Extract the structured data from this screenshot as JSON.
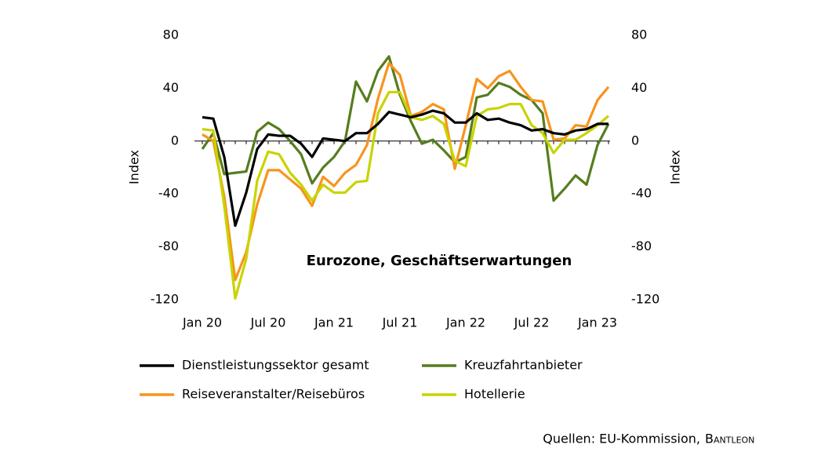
{
  "chart_data": {
    "type": "line",
    "annotation": "Eurozone, Geschäftserwartungen",
    "ylabel": "Index",
    "y2label": "Index",
    "source": "Quellen: EU-Kommission,",
    "source_brand": "Bantleon",
    "categories": [
      "Jan 20",
      null,
      null,
      null,
      null,
      null,
      "Jul 20",
      null,
      null,
      null,
      null,
      null,
      "Jan 21",
      null,
      null,
      null,
      null,
      null,
      "Jul 21",
      null,
      null,
      null,
      null,
      null,
      "Jan 22",
      null,
      null,
      null,
      null,
      null,
      "Jul 22",
      null,
      null,
      null,
      null,
      null,
      "Jan 23",
      null
    ],
    "ylim": [
      -120,
      80
    ],
    "yticks": [
      80,
      40,
      0,
      -40,
      -80,
      -120
    ],
    "y2lim": [
      -120,
      80
    ],
    "y2ticks": [
      80,
      40,
      0,
      -40,
      -80,
      -120
    ],
    "series": [
      {
        "name": "Dienstleistungssektor gesamt",
        "color": "#000000",
        "values": [
          18,
          17,
          -12,
          -64,
          -39,
          -6,
          5,
          4,
          4,
          -2,
          -12,
          2,
          1,
          0,
          6,
          6,
          13,
          22,
          20,
          18,
          20,
          23,
          21,
          14,
          14,
          21,
          16,
          17,
          14,
          12,
          8,
          9,
          6,
          5,
          8,
          9,
          13,
          13
        ]
      },
      {
        "name": "Kreuzfahrtanbieter",
        "color": "#567d1e",
        "values": [
          -6,
          6,
          -25,
          -24,
          -23,
          7,
          14,
          9,
          0,
          -10,
          -32,
          -20,
          -12,
          0,
          45,
          30,
          53,
          64,
          35,
          15,
          -2,
          1,
          -7,
          -16,
          -12,
          33,
          35,
          44,
          41,
          35,
          31,
          21,
          -45,
          -36,
          -26,
          -33,
          -3,
          13
        ]
      },
      {
        "name": "Reiseveranstalter/Reisebüros",
        "color": "#f7941d",
        "values": [
          5,
          0,
          -42,
          -105,
          -84,
          -48,
          -22,
          -22,
          -29,
          -36,
          -49,
          -27,
          -34,
          -24,
          -18,
          -3,
          32,
          59,
          50,
          19,
          22,
          28,
          24,
          -21,
          12,
          47,
          40,
          49,
          53,
          41,
          31,
          30,
          1,
          2,
          12,
          11,
          31,
          41
        ]
      },
      {
        "name": "Hotellerie",
        "color": "#c8d400",
        "values": [
          9,
          8,
          -49,
          -119,
          -89,
          -30,
          -8,
          -10,
          -24,
          -33,
          -45,
          -33,
          -39,
          -39,
          -31,
          -30,
          21,
          37,
          37,
          18,
          16,
          19,
          13,
          -15,
          -19,
          19,
          24,
          25,
          28,
          28,
          12,
          6,
          -9,
          1,
          1,
          6,
          12,
          19
        ]
      }
    ]
  }
}
